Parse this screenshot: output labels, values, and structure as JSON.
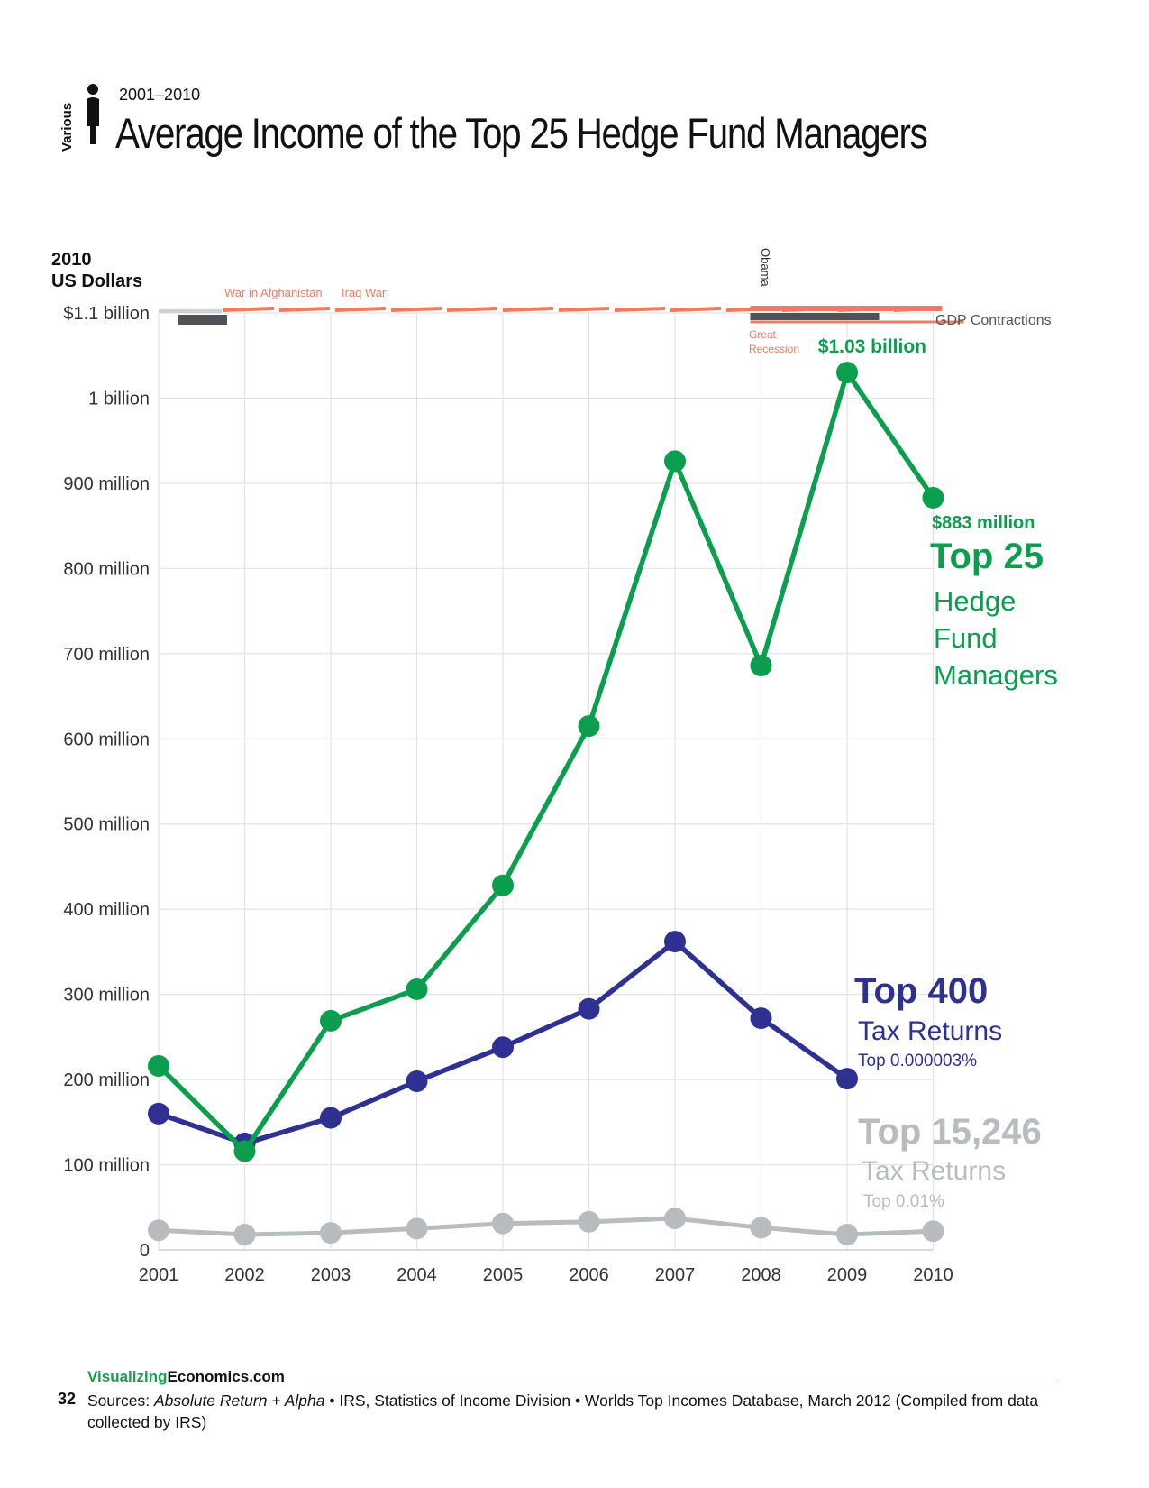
{
  "header": {
    "category": "Various",
    "years": "2001–2010",
    "title": "Average Income of the Top 25 Hedge Fund Managers"
  },
  "colors": {
    "hedge": "#0a9e4e",
    "top400": "#2e3192",
    "top15246": "#b8bcbf",
    "events": "#ef7b60",
    "president": "#4d5356",
    "grid": "#e3e3e3"
  },
  "chart_data": {
    "type": "line",
    "ylabel": "2010\nUS Dollars",
    "ylabel_lines": [
      "2010",
      "US Dollars"
    ],
    "x": [
      "2001",
      "2002",
      "2003",
      "2004",
      "2005",
      "2006",
      "2007",
      "2008",
      "2009",
      "2010"
    ],
    "ylim": [
      0,
      1100000000
    ],
    "y_ticks": [
      {
        "value": 0,
        "label": "0"
      },
      {
        "value": 100000000,
        "label": "100 million"
      },
      {
        "value": 200000000,
        "label": "200 million"
      },
      {
        "value": 300000000,
        "label": "300 million"
      },
      {
        "value": 400000000,
        "label": "400 million"
      },
      {
        "value": 500000000,
        "label": "500 million"
      },
      {
        "value": 600000000,
        "label": "600 million"
      },
      {
        "value": 700000000,
        "label": "700 million"
      },
      {
        "value": 800000000,
        "label": "800 million"
      },
      {
        "value": 900000000,
        "label": "900 million"
      },
      {
        "value": 1000000000,
        "label": "1 billion"
      },
      {
        "value": 1100000000,
        "label": "$1.1 billion"
      }
    ],
    "grid": true,
    "series": [
      {
        "key": "hedge",
        "values": [
          216000000,
          116000000,
          269000000,
          306000000,
          428000000,
          615000000,
          926000000,
          686000000,
          1030000000,
          883000000
        ],
        "label_big": "Top 25",
        "label_lines": [
          "Hedge",
          "Fund",
          "Managers"
        ],
        "label_sub": "",
        "annotations": [
          {
            "index": 8,
            "text": "$1.03 billion"
          },
          {
            "index": 9,
            "text": "$883 million"
          }
        ]
      },
      {
        "key": "top400",
        "values": [
          160000000,
          125000000,
          155000000,
          198000000,
          238000000,
          283000000,
          362000000,
          272000000,
          201000000,
          null
        ],
        "label_big": "Top 400",
        "label_lines": [
          "Tax Returns"
        ],
        "label_sub": "Top 0.000003%"
      },
      {
        "key": "top15246",
        "values": [
          23000000,
          18000000,
          20000000,
          25000000,
          31000000,
          33000000,
          37000000,
          26000000,
          18000000,
          22000000
        ],
        "label_big": "Top 15,246",
        "label_lines": [
          "Tax Returns"
        ],
        "label_sub": "Top 0.01%"
      }
    ],
    "events": {
      "wars": [
        "War in Afghanistan",
        "Iraq War"
      ],
      "recession": "Great Recession",
      "president": "Obama",
      "gdp": "GDP Contractions"
    }
  },
  "footer": {
    "brand_green": "Visualizing",
    "brand_dark": "Economics.com",
    "page_number": "32",
    "sources_prefix": "Sources: ",
    "sources_italic": "Absolute Return + Alpha",
    "sources_rest": " • IRS, Statistics of Income Division • Worlds Top Incomes Database, March 2012 (Compiled from data collected by IRS)"
  }
}
